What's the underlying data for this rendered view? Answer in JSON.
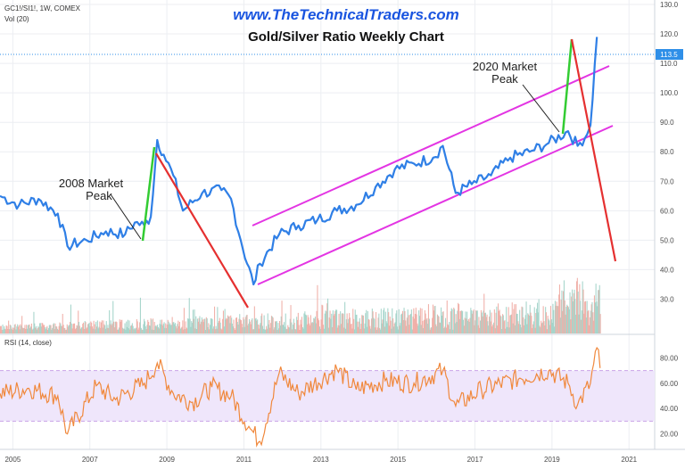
{
  "header": {
    "symbol_line": "GC1!/SI1!, 1W, COMEX",
    "volume_line": "Vol (20)",
    "website": "www.TheTechnicalTraders.com",
    "title": "Gold/Silver Ratio Weekly Chart"
  },
  "price_axis": {
    "ticks": [
      "130.0",
      "120.0",
      "110.0",
      "100.0",
      "90.0",
      "80.0",
      "70.0",
      "60.0",
      "50.0",
      "40.0",
      "30.0"
    ],
    "current_label": "113.5"
  },
  "rsi_panel": {
    "label": "RSI (14, close)",
    "ticks": [
      "80.00",
      "60.00",
      "40.00",
      "20.00"
    ],
    "band": [
      30,
      70
    ]
  },
  "time_axis": {
    "ticks": [
      "2005",
      "2007",
      "2009",
      "2011",
      "2013",
      "2015",
      "2017",
      "2019",
      "2021"
    ]
  },
  "annotations": {
    "peak_2008": [
      "2008 Market",
      "Peak"
    ],
    "peak_2020": [
      "2020 Market",
      "Peak"
    ]
  },
  "colors": {
    "price": "#2f7fe6",
    "rally": "#33cc33",
    "decline": "#e53030",
    "channel": "#e335e3",
    "rsi_line": "#f0883c",
    "rsi_band": "#efe6fb",
    "vol_up": "#9fd1c6",
    "vol_down": "#efaaa2",
    "website": "#1a55e0",
    "current_price": "#2f8fe8"
  },
  "chart_data": {
    "type": "line",
    "title": "Gold/Silver Ratio Weekly Chart",
    "x_range": [
      "2004-09",
      "2021-09"
    ],
    "ylim": [
      25,
      130
    ],
    "series": [
      {
        "name": "GC1!/SI1!",
        "x": [
          "2004-09",
          "2005-03",
          "2005-09",
          "2006-03",
          "2006-06",
          "2006-12",
          "2007-06",
          "2007-12",
          "2008-03",
          "2008-06",
          "2008-08",
          "2008-10",
          "2008-12",
          "2009-03",
          "2009-06",
          "2009-12",
          "2010-06",
          "2010-09",
          "2010-12",
          "2011-04",
          "2011-06",
          "2011-12",
          "2012-06",
          "2012-12",
          "2013-06",
          "2013-12",
          "2014-06",
          "2014-12",
          "2015-06",
          "2015-12",
          "2016-03",
          "2016-07",
          "2016-12",
          "2017-06",
          "2017-12",
          "2018-06",
          "2018-12",
          "2019-06",
          "2019-09",
          "2019-12",
          "2020-01",
          "2020-03"
        ],
        "values": [
          65,
          62,
          64,
          59,
          48,
          50,
          53,
          52,
          56,
          55,
          58,
          84,
          79,
          72,
          60,
          66,
          67,
          64,
          50,
          35,
          42,
          52,
          55,
          57,
          60,
          62,
          68,
          74,
          76,
          78,
          82,
          66,
          69,
          72,
          78,
          80,
          83,
          87,
          82,
          86,
          89,
          119
        ]
      },
      {
        "name": "RSI (14, close)",
        "x": [
          "2004-09",
          "2005-06",
          "2006-03",
          "2006-06",
          "2007-03",
          "2007-09",
          "2008-06",
          "2008-10",
          "2009-03",
          "2009-09",
          "2010-03",
          "2010-09",
          "2011-03",
          "2011-06",
          "2011-12",
          "2012-06",
          "2013-06",
          "2013-12",
          "2014-09",
          "2015-06",
          "2016-03",
          "2016-07",
          "2017-03",
          "2018-03",
          "2018-12",
          "2019-06",
          "2019-09",
          "2020-01",
          "2020-03",
          "2020-04"
        ],
        "values": [
          52,
          56,
          50,
          20,
          58,
          47,
          60,
          76,
          52,
          45,
          57,
          50,
          24,
          14,
          68,
          52,
          71,
          55,
          62,
          60,
          70,
          42,
          55,
          64,
          70,
          60,
          43,
          60,
          88,
          72
        ]
      }
    ],
    "annotations": [
      "2008 Market Peak",
      "2020 Market Peak"
    ]
  }
}
